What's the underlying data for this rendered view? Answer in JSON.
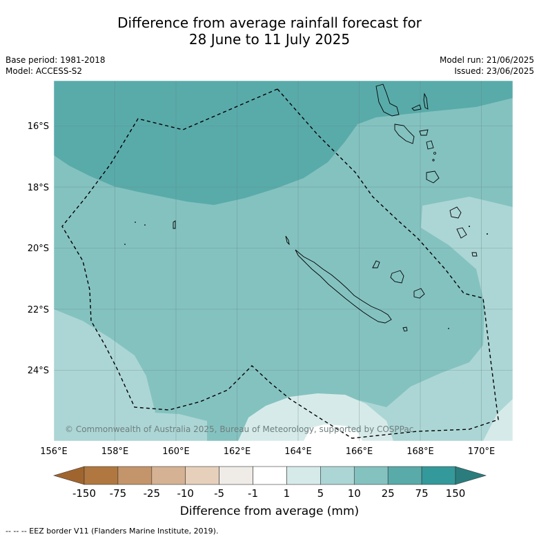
{
  "title": {
    "line1": "Difference from average rainfall forecast for",
    "line2": "28 June to 11 July 2025"
  },
  "meta_left": {
    "base_period": "Base period: 1981-2018",
    "model": "Model: ACCESS-S2"
  },
  "meta_right": {
    "model_run": "Model run: 21/06/2025",
    "issued": "Issued: 23/06/2025"
  },
  "map": {
    "lon_range": [
      156,
      171
    ],
    "lat_range": [
      -26.0,
      -14.5
    ],
    "lon_ticks": [
      "156°E",
      "158°E",
      "160°E",
      "162°E",
      "164°E",
      "166°E",
      "168°E",
      "170°E"
    ],
    "lat_ticks": [
      "16°S",
      "18°S",
      "20°S",
      "22°S",
      "24°S"
    ],
    "gridlines": true,
    "copyright": "© Commonwealth of Australia 2025, Bureau of Meteorology, supported by COSPPac"
  },
  "colorbar": {
    "labels": [
      "-150",
      "-75",
      "-25",
      "-10",
      "-5",
      "-1",
      "1",
      "5",
      "10",
      "25",
      "75",
      "150"
    ],
    "colors": [
      "#a0652e",
      "#b07840",
      "#c4956a",
      "#d5b293",
      "#e6d0bc",
      "#efebe7",
      "#ffffff",
      "#d6ebe9",
      "#acd6d5",
      "#84c2c0",
      "#59abaa",
      "#34999a",
      "#2a7d7c"
    ],
    "title": "Difference from average (mm)"
  },
  "legend_note": "--  --  -- EEZ border V11 (Flanders Marine Institute, 2019)."
}
